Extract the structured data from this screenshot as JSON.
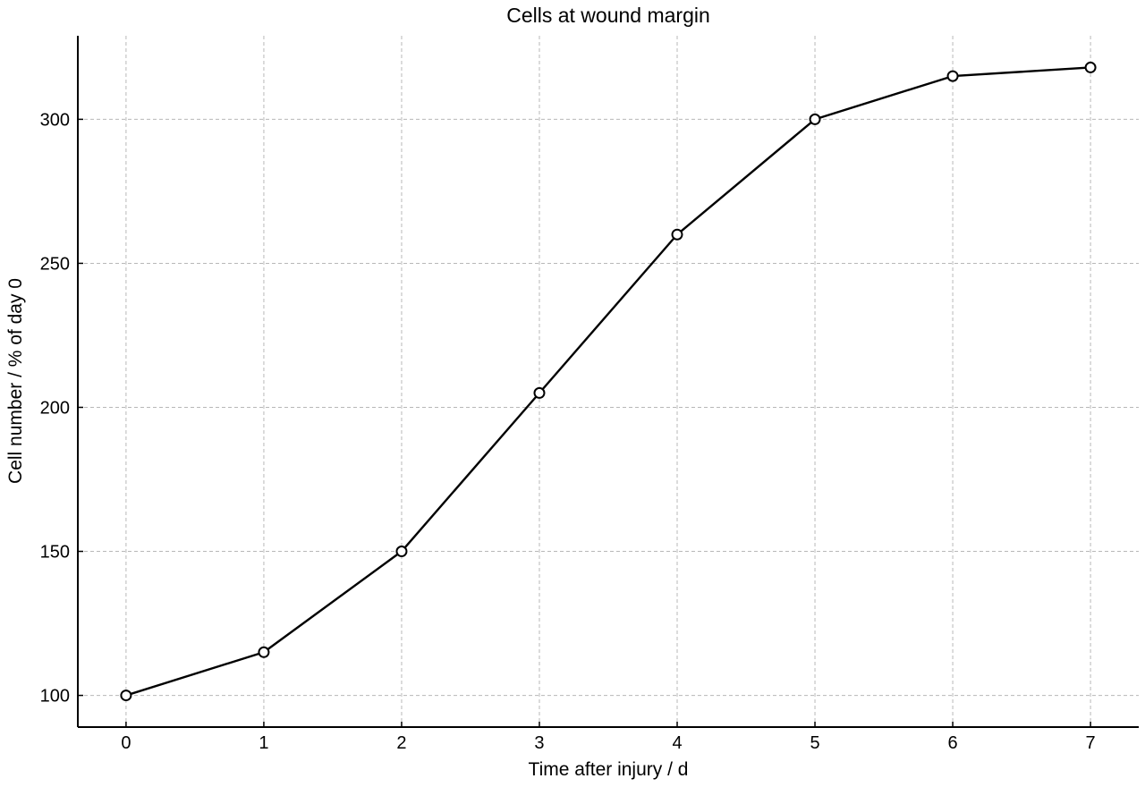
{
  "chart_data": {
    "type": "line",
    "title": "Cells at wound margin",
    "xlabel": "Time after injury / d",
    "ylabel": "Cell number / % of day 0",
    "x": [
      0,
      1,
      2,
      3,
      4,
      5,
      6,
      7
    ],
    "series": [
      {
        "values": [
          100,
          115,
          150,
          205,
          260,
          300,
          315,
          318
        ],
        "marker": "open-circle",
        "color": "#000000"
      }
    ],
    "xlim": [
      -0.35,
      7.35
    ],
    "ylim": [
      89,
      329
    ],
    "xticks": [
      0,
      1,
      2,
      3,
      4,
      5,
      6,
      7
    ],
    "yticks": [
      100,
      150,
      200,
      250,
      300
    ],
    "grid": true,
    "grid_style": "dashed",
    "grid_color": "#b8b8b8",
    "line_color": "#000000",
    "background": "#ffffff"
  }
}
